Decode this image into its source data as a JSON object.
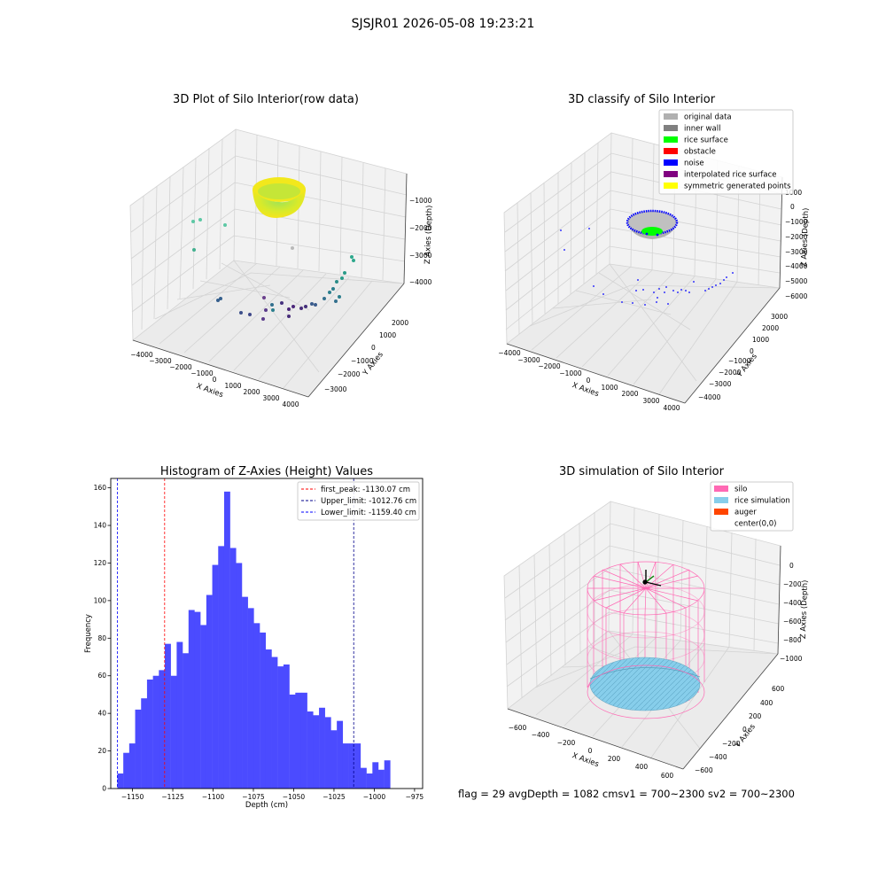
{
  "figure": {
    "suptitle": "SJSJR01 2026-05-08 19:23:21",
    "footer": "flag = 29  avgDepth = 1082 cmsv1 = 700~2300  sv2 = 700~2300"
  },
  "colors": {
    "hist_bar": "#4b4bff",
    "first_peak": "#ff0000",
    "upper_limit": "#00008b",
    "lower_limit": "#0000ff",
    "original_data": "#b0b0b0",
    "inner_wall": "#808080",
    "rice_surface": "#00ff00",
    "obstacle": "#ff0000",
    "noise": "#0000ff",
    "interpolated": "#800080",
    "symmetric": "#ffff00",
    "silo": "#ff69b4",
    "rice_sim": "#87ceeb",
    "auger": "#ff4500"
  },
  "panel1": {
    "title": "3D Plot of Silo Interior(row data)",
    "xlabel": "X Axies",
    "ylabel": "Y Axies",
    "zlabel": "Z Axies (Depth)",
    "xticks": [
      "−4000",
      "−3000",
      "−2000",
      "−1000",
      "0",
      "1000",
      "2000",
      "3000",
      "4000"
    ],
    "yticks": [
      "2000",
      "1000",
      "0",
      "−1000",
      "−2000",
      "−3000"
    ],
    "zticks": [
      "−1000",
      "−2000",
      "−3000",
      "−4000"
    ]
  },
  "panel2": {
    "title": "3D classify of Silo Interior",
    "xlabel": "X Axies",
    "ylabel": "Y Axies",
    "zlabel": "Z Axies (Depth)",
    "xticks": [
      "−4000",
      "−3000",
      "−2000",
      "−1000",
      "0",
      "1000",
      "2000",
      "3000",
      "4000"
    ],
    "yticks": [
      "3000",
      "2000",
      "1000",
      "0",
      "−1000",
      "−2000",
      "−3000",
      "−4000"
    ],
    "zticks": [
      "1000",
      "0",
      "−1000",
      "−2000",
      "−3000",
      "−4000",
      "−5000",
      "−6000"
    ],
    "legend": [
      "original data",
      "inner wall",
      "rice surface",
      "obstacle",
      "noise",
      "interpolated rice surface",
      "symmetric generated points"
    ]
  },
  "panel4": {
    "title": "3D simulation of Silo Interior",
    "xlabel": "X Axies",
    "ylabel": "Y Axies",
    "zlabel": "Z Axies (Depth)",
    "xticks": [
      "−600",
      "−400",
      "−200",
      "0",
      "200",
      "400",
      "600"
    ],
    "yticks": [
      "600",
      "400",
      "200",
      "0",
      "−200",
      "−400",
      "−600"
    ],
    "zticks": [
      "0",
      "−200",
      "−400",
      "−600",
      "−800",
      "−1000"
    ],
    "legend": [
      "silo",
      "rice simulation",
      "auger",
      "center(0,0)"
    ]
  },
  "chart_data": [
    {
      "type": "bar",
      "title": "Histogram of Z-Axies (Height) Values",
      "xlabel": "Depth (cm)",
      "ylabel": "Frequency",
      "xlim": [
        -1163.5,
        -970
      ],
      "ylim": [
        0,
        165
      ],
      "xticks": [
        -1150,
        -1125,
        -1100,
        -1075,
        -1050,
        -1025,
        -1000,
        -975
      ],
      "xtick_labels": [
        "−1150",
        "−1125",
        "−1100",
        "−1075",
        "−1050",
        "−1025",
        "−1000",
        "−975"
      ],
      "yticks": [
        0,
        20,
        40,
        60,
        80,
        100,
        120,
        140,
        160
      ],
      "bin_start": -1159.4,
      "bin_width": 3.68,
      "values": [
        8,
        19,
        24,
        42,
        48,
        58,
        60,
        63,
        77,
        60,
        78,
        72,
        95,
        94,
        87,
        103,
        119,
        129,
        158,
        128,
        120,
        102,
        96,
        88,
        83,
        74,
        70,
        65,
        66,
        50,
        51,
        51,
        41,
        39,
        43,
        38,
        31,
        36,
        24,
        24,
        24,
        11,
        8,
        14,
        10,
        15
      ],
      "vlines": [
        {
          "name": "first_peak: -1130.07 cm",
          "x": -1130.07,
          "color": "#ff0000"
        },
        {
          "name": "Upper_limit: -1012.76 cm",
          "x": -1012.76,
          "color": "#00008b"
        },
        {
          "name": "Lower_limit: -1159.40 cm",
          "x": -1159.4,
          "color": "#0000ff"
        }
      ],
      "legend_position": "upper-right"
    }
  ]
}
